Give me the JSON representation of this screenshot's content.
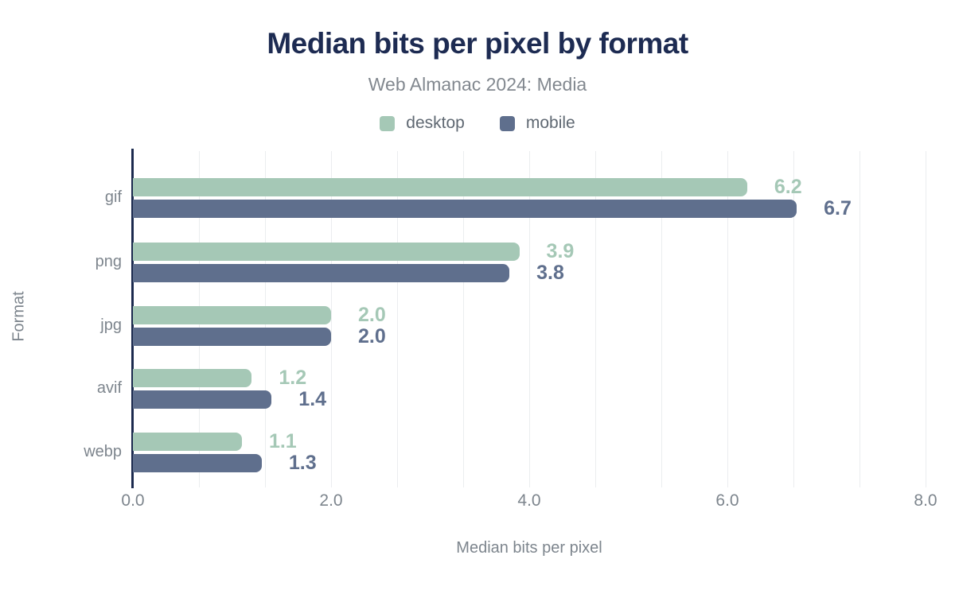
{
  "chart_data": {
    "type": "bar",
    "orientation": "horizontal",
    "title": "Median bits per pixel by format",
    "subtitle": "Web Almanac 2024: Media",
    "categories": [
      "gif",
      "png",
      "jpg",
      "avif",
      "webp"
    ],
    "series": [
      {
        "name": "desktop",
        "color": "#a5c8b6",
        "values": [
          6.2,
          3.9,
          2.0,
          1.2,
          1.1
        ]
      },
      {
        "name": "mobile",
        "color": "#5f6f8d",
        "values": [
          6.7,
          3.8,
          2.0,
          1.4,
          1.3
        ]
      }
    ],
    "value_labels": {
      "desktop": [
        "6.2",
        "3.9",
        "2.0",
        "1.2",
        "1.1"
      ],
      "mobile": [
        "6.7",
        "3.8",
        "2.0",
        "1.4",
        "1.3"
      ]
    },
    "xlabel": "Median bits per pixel",
    "ylabel": "Format",
    "xlim": [
      0,
      8
    ],
    "xticks": [
      "0.0",
      "2.0",
      "4.0",
      "6.0",
      "8.0"
    ],
    "grid": "vertical-minor, 3 minor intervals per major tick",
    "legend_position": "top-center"
  },
  "colors": {
    "title": "#1d2b52",
    "axis_line": "#1b2a4e",
    "muted_text": "#7d858d",
    "subtitle_text": "#82888f",
    "legend_text": "#5f6872",
    "gridline": "#ebedef",
    "background": "#ffffff"
  }
}
